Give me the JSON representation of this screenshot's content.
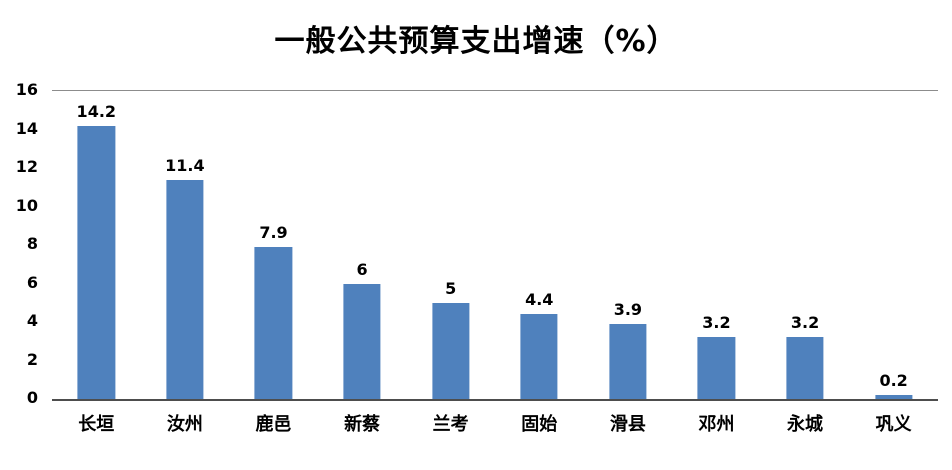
{
  "chart_data": {
    "type": "bar",
    "title": "一般公共预算支出增速（%）",
    "categories": [
      "长垣",
      "汝州",
      "鹿邑",
      "新蔡",
      "兰考",
      "固始",
      "滑县",
      "邓州",
      "永城",
      "巩义"
    ],
    "values": [
      14.2,
      11.4,
      7.9,
      6,
      5,
      4.4,
      3.9,
      3.2,
      3.2,
      0.2
    ],
    "value_labels": [
      "14.2",
      "11.4",
      "7.9",
      "6",
      "5",
      "4.4",
      "3.9",
      "3.2",
      "3.2",
      "0.2"
    ],
    "xlabel": "",
    "ylabel": "",
    "ylim": [
      0,
      16
    ],
    "yticks": [
      0,
      2,
      4,
      6,
      8,
      10,
      12,
      14,
      16
    ],
    "grid": false,
    "legend_position": "none",
    "bar_color": "#4F81BD",
    "background_color": "#FFFFFF"
  }
}
